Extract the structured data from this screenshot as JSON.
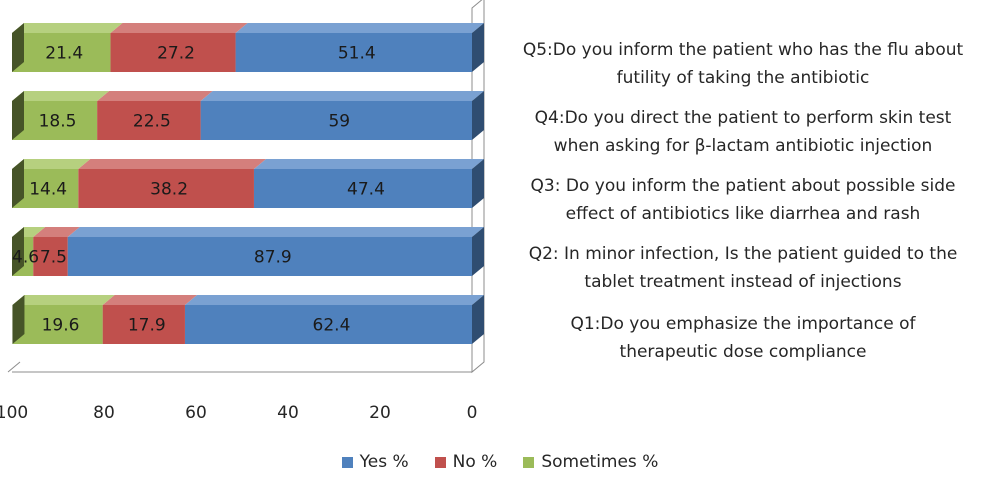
{
  "chart_data": {
    "type": "bar",
    "orientation": "horizontal",
    "stacked": true,
    "three_d": true,
    "x_axis_reversed": true,
    "categories": [
      "Q5:Do you inform the patient who has the flu about futility of taking the antibiotic",
      "Q4:Do you direct the patient to perform skin test when asking for β-lactam antibiotic injection",
      "Q3: Do you inform the patient about possible side effect of antibiotics like diarrhea and rash",
      "Q2: In minor infection, Is the patient guided to the tablet treatment instead of injections",
      "Q1:Do you emphasize the importance of therapeutic dose compliance"
    ],
    "category_lines": [
      [
        "Q5:Do you inform the patient who has the flu about",
        "futility of taking the antibiotic"
      ],
      [
        "Q4:Do you direct the patient to perform skin test",
        "when asking for β-lactam antibiotic injection"
      ],
      [
        "Q3: Do you inform the patient about possible side",
        "effect of antibiotics like diarrhea and rash"
      ],
      [
        "Q2: In minor infection, Is the patient guided to the",
        "tablet treatment instead of injections"
      ],
      [
        "Q1:Do you emphasize the importance of",
        "therapeutic dose compliance"
      ]
    ],
    "series": [
      {
        "name": "Yes %",
        "color": "#4f81bd",
        "top_color": "#7aa1d2",
        "values": [
          51.4,
          59,
          47.4,
          87.9,
          62.4
        ]
      },
      {
        "name": "No %",
        "color": "#c0504d",
        "top_color": "#d47f7c",
        "values": [
          27.2,
          22.5,
          38.2,
          7.5,
          17.9
        ]
      },
      {
        "name": "Sometimes %",
        "color": "#9bbb59",
        "top_color": "#b6d07f",
        "values": [
          21.4,
          18.5,
          14.4,
          4.6,
          19.6
        ]
      }
    ],
    "value_labels": [
      [
        "51.4",
        "59",
        "47.4",
        "87.9",
        "62.4"
      ],
      [
        "27.2",
        "22.5",
        "38.2",
        "7.5",
        "17.9"
      ],
      [
        "21.4",
        "18.5",
        "14.4",
        "4.6",
        "19.6"
      ]
    ],
    "xlim": [
      0,
      100
    ],
    "xticks": [
      100,
      80,
      60,
      40,
      20,
      0
    ],
    "grid": false,
    "legend_position": "bottom"
  }
}
